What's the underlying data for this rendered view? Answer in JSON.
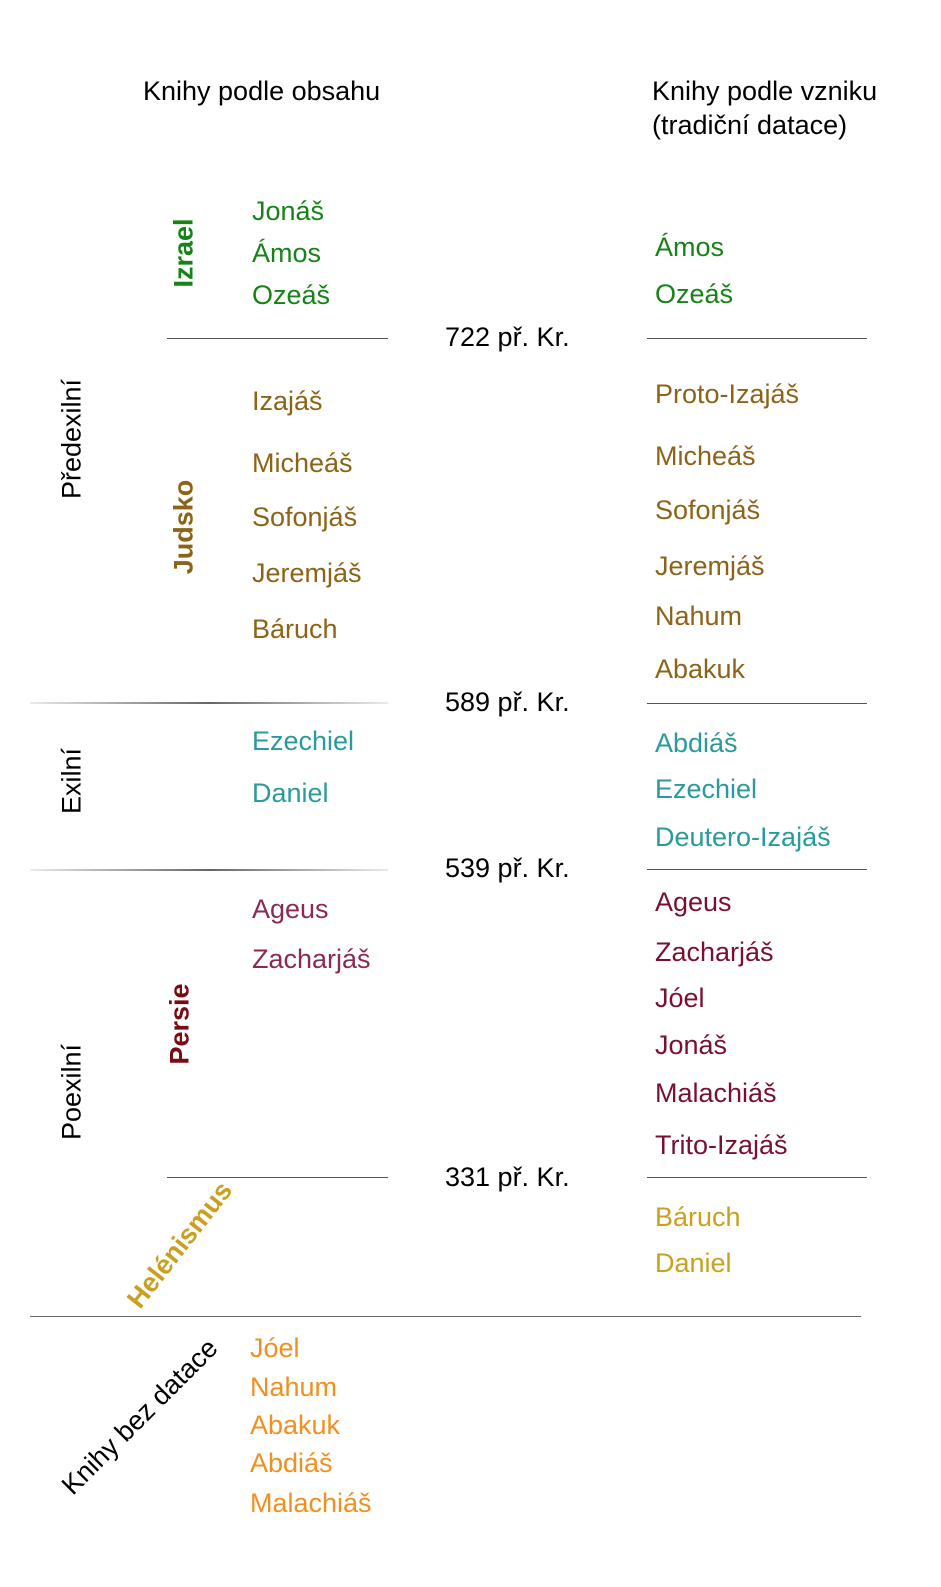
{
  "headers": {
    "left": "Knihy podle obsahu",
    "right_line1": "Knihy podle vzniku",
    "right_line2": "(tradiční datace)"
  },
  "periods": {
    "pre": "Předexilní",
    "exile": "Exilní",
    "post": "Poexilní"
  },
  "kingdoms": {
    "israel": "Izrael",
    "judah": "Judsko",
    "persia": "Persie",
    "hellenism": "Helénismus"
  },
  "dates": [
    "722 př. Kr.",
    "589 př. Kr.",
    "539 př. Kr.",
    "331 př. Kr."
  ],
  "content_books": {
    "israel": [
      "Jonáš",
      "Ámos",
      "Ozeáš"
    ],
    "judah": [
      "Izajáš",
      "Micheáš",
      "Sofonjáš",
      "Jeremjáš",
      "Báruch"
    ],
    "exile": [
      "Ezechiel",
      "Daniel"
    ],
    "persia": [
      "Ageus",
      "Zacharjáš"
    ]
  },
  "origin_books": {
    "israel": [
      "Ámos",
      "Ozeáš"
    ],
    "judah": [
      "Proto-Izajáš",
      "Micheáš",
      "Sofonjáš",
      "Jeremjáš",
      "Nahum",
      "Abakuk"
    ],
    "exile": [
      "Abdiáš",
      "Ezechiel",
      "Deutero-Izajáš"
    ],
    "persia": [
      "Ageus",
      "Zacharjáš",
      "Jóel",
      "Jonáš",
      "Malachiáš",
      "Trito-Izajáš"
    ],
    "hellenism": [
      "Báruch",
      "Daniel"
    ]
  },
  "undated": {
    "label": "Knihy bez datace",
    "books": [
      "Jóel",
      "Nahum",
      "Abakuk",
      "Abdiáš",
      "Malachiáš"
    ]
  },
  "colors": {
    "israel": "#178317",
    "judah": "#8c6317",
    "exile": "#2a9a9a",
    "persia_content": "#8a2a55",
    "persia_origin": "#7a1030",
    "persia_label": "#7a0a14",
    "hellenism": "#c9a020",
    "undated": "#f09020"
  }
}
